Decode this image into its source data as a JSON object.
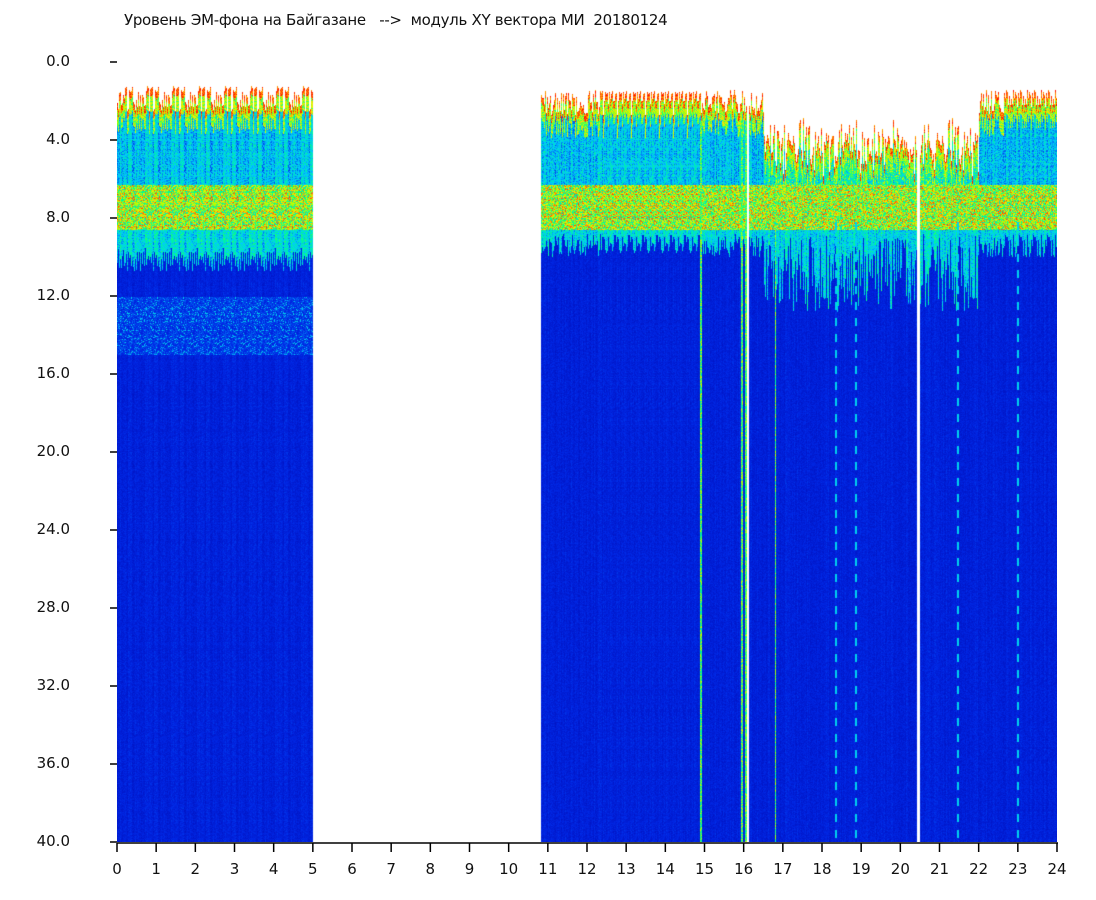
{
  "chart_data": {
    "type": "heatmap",
    "title": "Уровень ЭМ-фона на Байгазане   -->  модуль XY вектора МИ  20180124",
    "xlabel": "",
    "ylabel": "",
    "xlim": [
      0,
      24
    ],
    "ylim": [
      40,
      0
    ],
    "x_ticks": [
      "0",
      "1",
      "2",
      "3",
      "4",
      "5",
      "6",
      "7",
      "8",
      "9",
      "10",
      "11",
      "12",
      "13",
      "14",
      "15",
      "16",
      "17",
      "18",
      "19",
      "20",
      "21",
      "22",
      "23",
      "24"
    ],
    "y_ticks": [
      "0.0",
      "4.0",
      "8.0",
      "12.0",
      "16.0",
      "20.0",
      "24.0",
      "28.0",
      "32.0",
      "36.0",
      "40.0"
    ],
    "colormap": "jet",
    "no_data_intervals": [
      [
        4.98,
        10.8
      ]
    ],
    "features": {
      "top_edge_range": [
        1.0,
        3.0
      ],
      "intense_band": [
        6.5,
        8.5
      ],
      "speckle_band_segment1": [
        12.0,
        15.0
      ],
      "white_lines_at": [
        16.1,
        20.45
      ],
      "bright_lines_at": [
        14.9,
        15.95,
        16.05,
        16.8
      ],
      "dashed_lines_at": [
        18.35,
        18.85,
        21.45,
        23.0
      ]
    },
    "colors": {
      "low": "#0010c0",
      "mid": "#00e0ff",
      "high": "#ff0000"
    }
  }
}
